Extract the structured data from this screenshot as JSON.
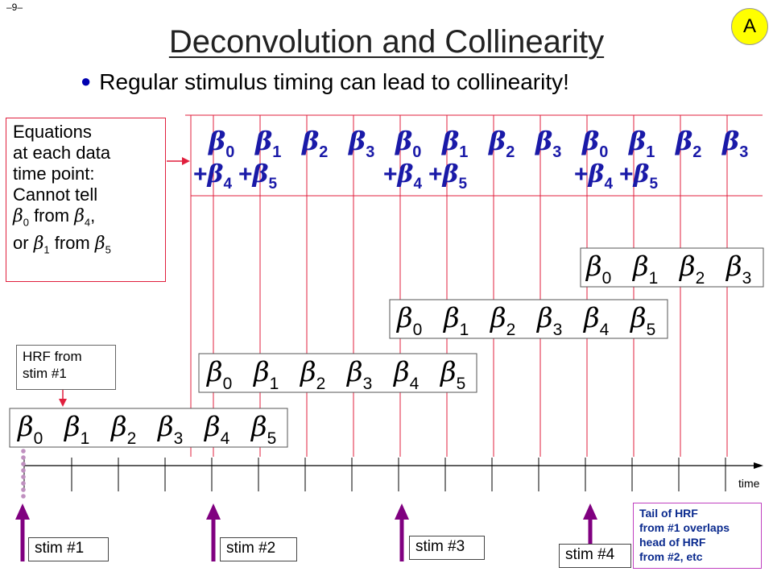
{
  "page_number": "–9–",
  "title": "Deconvolution and Collinearity",
  "bullet": "Regular stimulus timing can lead to collinearity!",
  "badge": "A",
  "beta_symbol": "β",
  "equations_box": {
    "lines": [
      "Equations",
      "at each data",
      "time point:",
      "Cannot tell"
    ],
    "line5": {
      "a": "0",
      "mid": " from ",
      "b": "4",
      "end": ","
    },
    "line6": {
      "pre": "or ",
      "a": "1",
      "mid": " from ",
      "b": "5"
    }
  },
  "equation_row": {
    "top_subscripts": [
      "0",
      "1",
      "2",
      "3",
      "0",
      "1",
      "2",
      "3",
      "0",
      "1",
      "2",
      "3"
    ],
    "plus_terms": [
      "+β4",
      "+β5",
      "+β4",
      "+β5",
      "+β4",
      "+β5"
    ]
  },
  "hrf_rows": [
    {
      "subscripts": [
        "0",
        "1",
        "2",
        "3",
        "4",
        "5"
      ]
    },
    {
      "subscripts": [
        "0",
        "1",
        "2",
        "3",
        "4",
        "5"
      ]
    },
    {
      "subscripts": [
        "0",
        "1",
        "2",
        "3",
        "4",
        "5"
      ]
    },
    {
      "subscripts": [
        "0",
        "1",
        "2",
        "3"
      ]
    }
  ],
  "hrf_label": {
    "line1": "HRF from",
    "line2": "stim #1"
  },
  "time_label": "time",
  "stimuli": [
    "stim #1",
    "stim #2",
    "stim #3",
    "stim #4"
  ],
  "tail_note": [
    "Tail of HRF",
    "from #1 overlaps",
    "head of HRF",
    "from #2, etc"
  ],
  "colors": {
    "equation_blue": "#1a1aa8",
    "red_line": "#e01f3d",
    "stim_arrow": "#800080",
    "dots": "#c090c0"
  }
}
